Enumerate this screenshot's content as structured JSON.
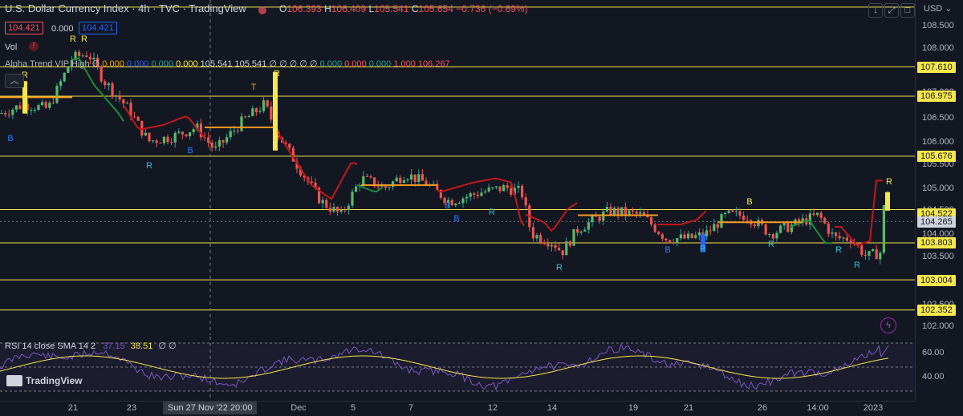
{
  "header": {
    "title": "U.S. Dollar Currency Index · 4h · TVC · TradingView",
    "ohlc": [
      {
        "k": "O",
        "v": "106.393"
      },
      {
        "k": "H",
        "v": "106.409"
      },
      {
        "k": "L",
        "v": "105.541"
      },
      {
        "k": "C",
        "v": "105.654"
      },
      {
        "k": "",
        "v": "−0.736 (−0.69%)"
      }
    ],
    "bid": "104.421",
    "spread": "0.000",
    "ask": "104.421",
    "vol_label": "Vol"
  },
  "indicators": {
    "alpha_trend_label": "Alpha Trend VIP High",
    "alpha_trend_values": [
      {
        "t": "∅",
        "c": "#d1d4dc"
      },
      {
        "t": "0.000",
        "c": "#f7a600"
      },
      {
        "t": "0.000",
        "c": "#2962ff"
      },
      {
        "t": "0.000",
        "c": "#26a69a"
      },
      {
        "t": "0.000",
        "c": "#f7e84a"
      },
      {
        "t": "105.541",
        "c": "#d1d4dc"
      },
      {
        "t": "105.541",
        "c": "#d1d4dc"
      },
      {
        "t": "∅ ∅ ∅ ∅ ∅",
        "c": "#d1d4dc"
      },
      {
        "t": "0.000",
        "c": "#26a69a"
      },
      {
        "t": "0.000",
        "c": "#f7525f"
      },
      {
        "t": "0.000",
        "c": "#26a69a"
      },
      {
        "t": "1.000",
        "c": "#f7525f"
      },
      {
        "t": "106.267",
        "c": "#f7525f"
      }
    ],
    "rsi_label": "RSI 14 close SMA 14 2",
    "rsi_value": "37.15",
    "rsi_sma_value": "38.51",
    "rsi_extra": "∅ ∅"
  },
  "price_axis": {
    "currency": "USD",
    "labels": [
      "108.500",
      "108.000",
      "107.500",
      "107.000",
      "106.500",
      "106.000",
      "105.500",
      "105.000",
      "104.500",
      "104.000",
      "103.500",
      "102.500",
      "102.000"
    ],
    "tags": [
      "107.610",
      "106.975",
      "105.676",
      "104.522",
      "104.265",
      "103.803",
      "103.004",
      "102.352"
    ],
    "rsi_labels": [
      "60.00",
      "40.00"
    ]
  },
  "time_axis": {
    "labels": [
      "21",
      "23",
      "Dec",
      "5",
      "7",
      "12",
      "14",
      "19",
      "21",
      "26",
      "14:00",
      "2023"
    ],
    "crosshair": "Sun 27 Nov '22   20:00"
  },
  "signals": [
    "R",
    "R",
    "R",
    "B",
    "R",
    "B",
    "T",
    "R",
    "B",
    "R",
    "B",
    "R",
    "B",
    "R",
    "B",
    "R",
    "R",
    "R",
    "R"
  ],
  "branding": "TradingView",
  "colors": {
    "up": "#26a69a",
    "down": "#ef5350",
    "level": "#f7e84a",
    "trend_red": "#c2181a",
    "trend_green": "#1e8c3a",
    "trend_orange": "#f59a23",
    "rsi": "#7e57c2",
    "rsi_sma": "#f7e84a"
  }
}
